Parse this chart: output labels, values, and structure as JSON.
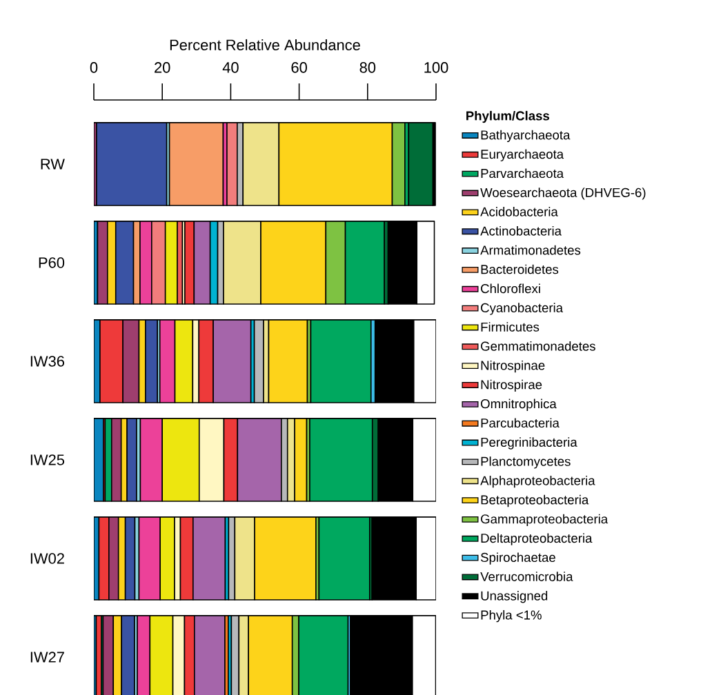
{
  "chart_data": {
    "type": "bar",
    "orientation": "horizontal",
    "stacked": true,
    "xlabel": "Percent Relative Abundance",
    "legend_title": "Phylum/Class",
    "legend": "right",
    "xlim": [
      0,
      100
    ],
    "xticks": [
      0,
      20,
      40,
      60,
      80,
      100
    ],
    "categories": [
      "RW",
      "P60",
      "IW36",
      "IW25",
      "IW02",
      "IW27"
    ],
    "series": [
      {
        "name": "Bathyarchaeota",
        "color": "#0a86c0",
        "values": [
          null,
          1.1,
          1.8,
          2.8,
          1.5,
          0.7
        ]
      },
      {
        "name": "Euryarchaeota",
        "color": "#ee3a3a",
        "values": [
          null,
          null,
          6.7,
          0.5,
          2.9,
          1.5
        ]
      },
      {
        "name": "Parvarchaeota",
        "color": "#00a862",
        "values": [
          null,
          null,
          null,
          1.9,
          null,
          0.5
        ]
      },
      {
        "name": "Woesearchaeota (DHVEG-6)",
        "color": "#9e3e6e",
        "values": [
          0.8,
          2.9,
          4.7,
          2.8,
          2.8,
          3.0
        ]
      },
      {
        "name": "Acidobacteria",
        "color": "#fcd21c",
        "values": [
          null,
          2.4,
          1.9,
          1.7,
          2.0,
          2.4
        ]
      },
      {
        "name": "Actinobacteria",
        "color": "#3a53a4",
        "values": [
          20.5,
          5.2,
          3.5,
          2.8,
          2.8,
          3.8
        ]
      },
      {
        "name": "Armatimonadetes",
        "color": "#8ad3e0",
        "values": [
          0.8,
          null,
          0.7,
          1.1,
          1.2,
          0.8
        ]
      },
      {
        "name": "Bacteroidetes",
        "color": "#f79d67",
        "values": [
          15.7,
          1.9,
          null,
          null,
          null,
          null
        ]
      },
      {
        "name": "Chloroflexi",
        "color": "#ec4199",
        "values": [
          1.1,
          3.4,
          4.4,
          6.4,
          6.2,
          3.7
        ]
      },
      {
        "name": "Cyanobacteria",
        "color": "#f27d7c",
        "values": [
          3.0,
          4.0,
          null,
          null,
          null,
          null
        ]
      },
      {
        "name": "Firmicutes",
        "color": "#ede60f",
        "values": [
          null,
          3.5,
          5.2,
          10.8,
          4.2,
          6.7
        ]
      },
      {
        "name": "Gemmatimonadetes",
        "color": "#ef5a5a",
        "values": [
          null,
          1.5,
          null,
          null,
          null,
          null
        ]
      },
      {
        "name": "Nitrospinae",
        "color": "#fff7c2",
        "values": [
          null,
          0.7,
          1.8,
          7.2,
          1.7,
          3.4
        ]
      },
      {
        "name": "Nitrospirae",
        "color": "#ee3a3a",
        "values": [
          null,
          2.7,
          4.2,
          4.0,
          3.7,
          2.9
        ]
      },
      {
        "name": "Omnitrophica",
        "color": "#a565aa",
        "values": [
          null,
          4.7,
          11.0,
          12.8,
          9.4,
          8.9
        ]
      },
      {
        "name": "Parcubacteria",
        "color": "#f47a20",
        "values": [
          null,
          null,
          null,
          null,
          null,
          1.0
        ]
      },
      {
        "name": "Peregrinibacteria",
        "color": "#00b2d2",
        "values": [
          null,
          2.2,
          1.0,
          null,
          1.0,
          0.9
        ]
      },
      {
        "name": "Planctomycetes",
        "color": "#b7b8ba",
        "values": [
          1.7,
          1.7,
          2.7,
          1.8,
          1.8,
          2.2
        ]
      },
      {
        "name": "Alphaproteobacteria",
        "color": "#eee38a",
        "values": [
          10.5,
          10.9,
          1.5,
          2.1,
          5.8,
          2.8
        ]
      },
      {
        "name": "Betaproteobacteria",
        "color": "#fdd31a",
        "values": [
          33.1,
          19.0,
          11.3,
          3.5,
          17.9,
          12.8
        ]
      },
      {
        "name": "Gammaproteobacteria",
        "color": "#7ec242",
        "values": [
          3.7,
          5.7,
          1.0,
          0.9,
          0.9,
          1.9
        ]
      },
      {
        "name": "Deltaproteobacteria",
        "color": "#00a85f",
        "values": [
          1.1,
          11.4,
          17.6,
          18.3,
          14.8,
          14.4
        ]
      },
      {
        "name": "Spirochaetae",
        "color": "#3dbde8",
        "values": [
          null,
          null,
          1.2,
          null,
          null,
          0.7
        ]
      },
      {
        "name": "Verrucomicrobia",
        "color": "#006d38",
        "values": [
          7.1,
          1.1,
          null,
          1.7,
          0.7,
          null
        ]
      },
      {
        "name": "Unassigned",
        "color": "#000000",
        "values": [
          0.7,
          8.4,
          11.3,
          10.1,
          12.9,
          18.1
        ]
      },
      {
        "name": "Phyla <1%",
        "color": "#ffffff",
        "values": [
          null,
          5.1,
          6.5,
          6.8,
          5.8,
          6.8
        ]
      }
    ]
  }
}
